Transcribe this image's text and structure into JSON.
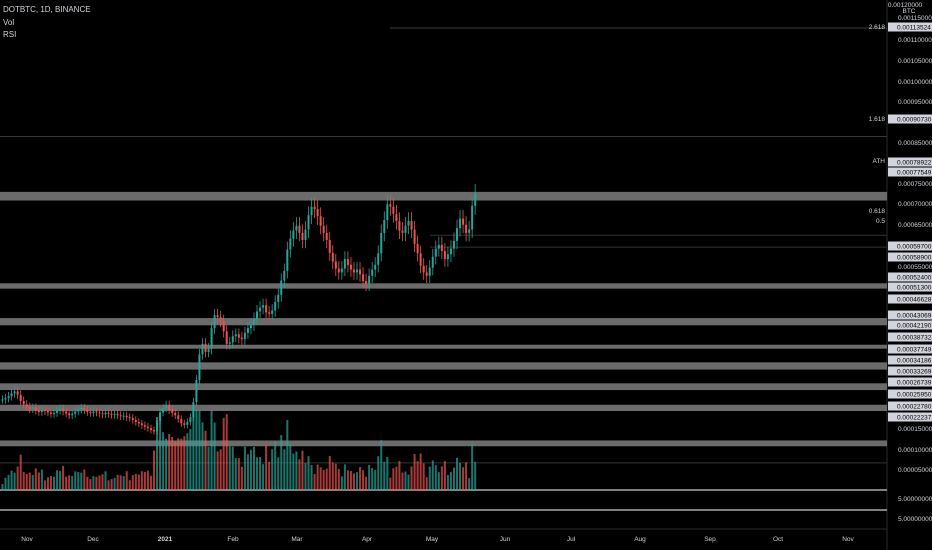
{
  "header": {
    "symbol": "DOTBTC, 1D, BINANCE",
    "indicator_vol": "Vol",
    "indicator_rsi": "RSI"
  },
  "price_axis": {
    "currency": "BTC",
    "top_label": "0.00120000",
    "labels": [
      "0.00115000",
      "0.00110000",
      "0.00105000",
      "0.00100000",
      "0.00095000",
      "0.00085000",
      "0.00075000",
      "0.00070000",
      "0.00065000",
      "0.00055000"
    ],
    "level_labels": [
      "0.00113524",
      "0.00090730",
      "0.00078922",
      "0.00077549",
      "0.00059700",
      "0.00058900",
      "0.00052400",
      "0.00051300",
      "0.00046628",
      "0.00043069",
      "0.00042190",
      "0.00038732",
      "0.00037749",
      "0.00034186",
      "0.00033269",
      "0.00026739",
      "0.00025950",
      "0.00022780",
      "0.00022237"
    ],
    "tags": [
      {
        "text": "2.618",
        "price": 0.00113524
      },
      {
        "text": "1.618",
        "price": 0.0009073
      },
      {
        "text": "ATH",
        "price": 0.00078922
      },
      {
        "text": "0.618",
        "price": 0.0007
      },
      {
        "text": "0.5",
        "price": 0.000675
      }
    ]
  },
  "volume_axis": {
    "labels": [
      "0.00015000",
      "0.00010000",
      "0.00005000"
    ]
  },
  "rsi_axis": {
    "labels": [
      "5.00000000",
      "5.00000000"
    ]
  },
  "time_axis": {
    "labels": [
      "Nov",
      "Dec",
      "2021",
      "Feb",
      "Mar",
      "Apr",
      "May",
      "Jun",
      "Jul",
      "Aug",
      "Sep",
      "Oct",
      "Nov"
    ]
  },
  "colors": {
    "up": "#26a69a",
    "down": "#ef5350",
    "band": "#6b6b6b",
    "background": "#000000",
    "text": "#d1d4dc"
  },
  "chart_data": {
    "type": "candlestick",
    "series_closes": [
      0.000355,
      0.000358,
      0.000362,
      0.000368,
      0.000372,
      0.000365,
      0.000352,
      0.000345,
      0.00034,
      0.000335,
      0.000338,
      0.000332,
      0.000329,
      0.000333,
      0.000331,
      0.000328,
      0.000325,
      0.000327,
      0.000332,
      0.000336,
      0.00033,
      0.000326,
      0.000322,
      0.000325,
      0.00033,
      0.000334,
      0.000337,
      0.000333,
      0.000329,
      0.000327,
      0.00033,
      0.000328,
      0.000326,
      0.000324,
      0.000327,
      0.000325,
      0.000323,
      0.000325,
      0.000322,
      0.00032,
      0.000321,
      0.000318,
      0.000316,
      0.000312,
      0.000308,
      0.000305,
      0.000301,
      0.000298,
      0.000295,
      0.000291,
      0.000288,
      0.00031,
      0.000328,
      0.000337,
      0.000344,
      0.000333,
      0.000327,
      0.000322,
      0.000314,
      0.000305,
      0.000302,
      0.000308,
      0.000318,
      0.00035,
      0.000396,
      0.00045,
      0.000472,
      0.000455,
      0.000462,
      0.000505,
      0.000532,
      0.000528,
      0.00052,
      0.000498,
      0.000472,
      0.000475,
      0.000488,
      0.000492,
      0.000485,
      0.000482,
      0.000495,
      0.000505,
      0.000512,
      0.000525,
      0.00054,
      0.000548,
      0.000553,
      0.000538,
      0.000535,
      0.000542,
      0.00056,
      0.000575,
      0.000605,
      0.000625,
      0.00067,
      0.000693,
      0.00071,
      0.00072,
      0.000705,
      0.00069,
      0.000712,
      0.000742,
      0.00076,
      0.000755,
      0.00074,
      0.00072,
      0.000705,
      0.00069,
      0.000663,
      0.000645,
      0.00063,
      0.000622,
      0.00063,
      0.00065,
      0.000638,
      0.000628,
      0.000622,
      0.000628,
      0.000618,
      0.000604,
      0.000598,
      0.000615,
      0.000628,
      0.000638,
      0.000662,
      0.000705,
      0.000732,
      0.000765,
      0.00076,
      0.000745,
      0.00073,
      0.00071,
      0.000705,
      0.00072,
      0.00073,
      0.000712,
      0.000682,
      0.000662,
      0.000636,
      0.000622,
      0.000615,
      0.000632,
      0.000655,
      0.000672,
      0.00068,
      0.000667,
      0.00065,
      0.00066,
      0.000672,
      0.000688,
      0.000715,
      0.000735,
      0.000722,
      0.000705,
      0.000712,
      0.000762,
      0.000788
    ]
  }
}
